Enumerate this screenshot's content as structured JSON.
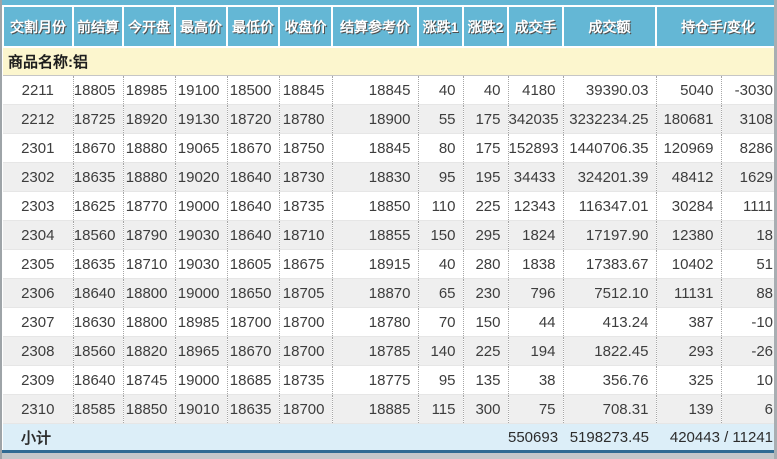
{
  "panel": {
    "accent_color": "#64B7D5",
    "group_row_color": "#FCF6CE",
    "subtotal_row_color": "#DCEEF8",
    "bottom_bar_color": "#2F6A93"
  },
  "table": {
    "columns": [
      "交割月份",
      "前结算",
      "今开盘",
      "最高价",
      "最低价",
      "收盘价",
      "结算参考价",
      "涨跌1",
      "涨跌2",
      "成交手",
      "成交额",
      "持仓手/变化"
    ],
    "column_keys": [
      "delivery-month",
      "prev-settle",
      "open",
      "high",
      "low",
      "close",
      "settle-ref",
      "change1",
      "change2",
      "volume",
      "turnover",
      "open-interest",
      "oi-change"
    ],
    "group_label": "商品名称:铝",
    "rows": [
      [
        "2211",
        "18805",
        "18985",
        "19100",
        "18500",
        "18845",
        "18845",
        "40",
        "40",
        "4180",
        "39390.03",
        "5040",
        "-3030"
      ],
      [
        "2212",
        "18725",
        "18920",
        "19130",
        "18720",
        "18780",
        "18900",
        "55",
        "175",
        "342035",
        "3232234.25",
        "180681",
        "3108"
      ],
      [
        "2301",
        "18670",
        "18880",
        "19065",
        "18670",
        "18750",
        "18845",
        "80",
        "175",
        "152893",
        "1440706.35",
        "120969",
        "8286"
      ],
      [
        "2302",
        "18635",
        "18880",
        "19020",
        "18640",
        "18730",
        "18830",
        "95",
        "195",
        "34433",
        "324201.39",
        "48412",
        "1629"
      ],
      [
        "2303",
        "18625",
        "18770",
        "19000",
        "18640",
        "18735",
        "18850",
        "110",
        "225",
        "12343",
        "116347.01",
        "30284",
        "1111"
      ],
      [
        "2304",
        "18560",
        "18790",
        "19030",
        "18640",
        "18710",
        "18855",
        "150",
        "295",
        "1824",
        "17197.90",
        "12380",
        "18"
      ],
      [
        "2305",
        "18635",
        "18710",
        "19030",
        "18605",
        "18675",
        "18915",
        "40",
        "280",
        "1838",
        "17383.67",
        "10402",
        "51"
      ],
      [
        "2306",
        "18640",
        "18800",
        "19000",
        "18650",
        "18705",
        "18870",
        "65",
        "230",
        "796",
        "7512.10",
        "11131",
        "88"
      ],
      [
        "2307",
        "18630",
        "18800",
        "18985",
        "18700",
        "18700",
        "18780",
        "70",
        "150",
        "44",
        "413.24",
        "387",
        "-10"
      ],
      [
        "2308",
        "18560",
        "18820",
        "18965",
        "18670",
        "18700",
        "18785",
        "140",
        "225",
        "194",
        "1822.45",
        "293",
        "-26"
      ],
      [
        "2309",
        "18640",
        "18745",
        "19000",
        "18685",
        "18735",
        "18775",
        "95",
        "135",
        "38",
        "356.76",
        "325",
        "10"
      ],
      [
        "2310",
        "18585",
        "18850",
        "19010",
        "18635",
        "18700",
        "18885",
        "115",
        "300",
        "75",
        "708.31",
        "139",
        "6"
      ]
    ],
    "subtotal": {
      "label": "小计",
      "volume": "550693",
      "turnover": "5198273.45",
      "open_interest_change": "420443 / 11241"
    }
  }
}
